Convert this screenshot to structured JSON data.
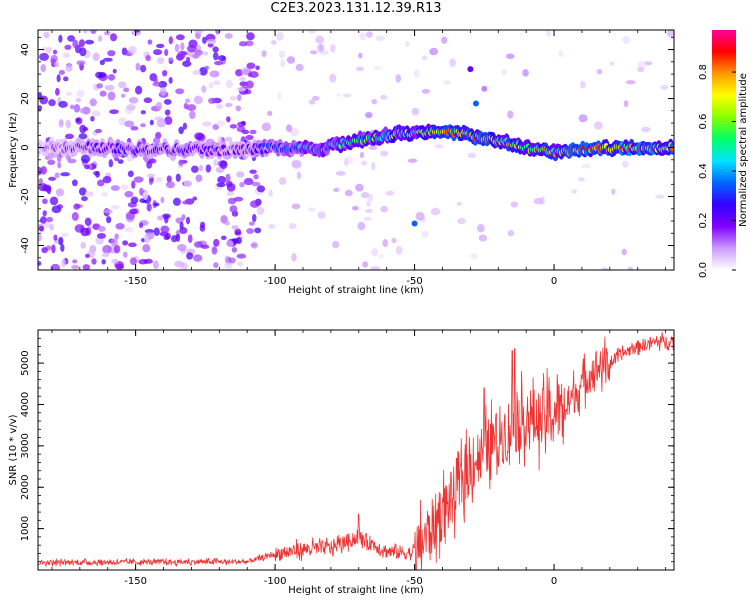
{
  "title": "C2E3.2023.131.12.39.R13",
  "chart_data": [
    {
      "type": "heatmap",
      "name": "spectrogram",
      "xlabel": "Height of straight line (km)",
      "ylabel": "Frequency (Hz)",
      "xlim": [
        -185,
        43
      ],
      "ylim": [
        -50,
        48
      ],
      "xticks": [
        -150,
        -100,
        -50,
        0
      ],
      "yticks": [
        -40,
        -20,
        0,
        20,
        40
      ],
      "colorbar": {
        "label": "Normalized spectral amplitude",
        "range": [
          0,
          0.97
        ],
        "ticks": [
          0.0,
          0.2,
          0.4,
          0.6,
          0.8
        ],
        "colormap": [
          "#ffffff",
          "#cc99ff",
          "#8000ff",
          "#3300ff",
          "#0066ff",
          "#00e5ff",
          "#00ff66",
          "#88ff00",
          "#ffff00",
          "#ff9900",
          "#ff0000",
          "#ff0099"
        ]
      },
      "ridge": {
        "description_points": [
          {
            "x": -185,
            "f": 0,
            "amp": 0.12
          },
          {
            "x": -160,
            "f": 0,
            "amp": 0.25
          },
          {
            "x": -130,
            "f": -1,
            "amp": 0.25
          },
          {
            "x": -110,
            "f": -1,
            "amp": 0.2
          },
          {
            "x": -100,
            "f": 0,
            "amp": 0.35
          },
          {
            "x": -85,
            "f": -1,
            "amp": 0.45
          },
          {
            "x": -75,
            "f": 2,
            "amp": 0.55
          },
          {
            "x": -60,
            "f": 5,
            "amp": 0.6
          },
          {
            "x": -50,
            "f": 6,
            "amp": 0.65
          },
          {
            "x": -40,
            "f": 7,
            "amp": 0.75
          },
          {
            "x": -30,
            "f": 5,
            "amp": 0.8
          },
          {
            "x": -20,
            "f": 3,
            "amp": 0.75
          },
          {
            "x": -10,
            "f": 0,
            "amp": 0.7
          },
          {
            "x": 0,
            "f": -2,
            "amp": 0.75
          },
          {
            "x": 10,
            "f": -1,
            "amp": 0.85
          },
          {
            "x": 25,
            "f": 0,
            "amp": 0.9
          },
          {
            "x": 43,
            "f": 0,
            "amp": 0.85
          }
        ]
      }
    },
    {
      "type": "line",
      "name": "snr",
      "xlabel": "Height of straight line (km)",
      "ylabel": "SNR (10 * v/v)",
      "xlim": [
        -185,
        43
      ],
      "ylim": [
        0,
        5800
      ],
      "xticks": [
        -150,
        -100,
        -50,
        0
      ],
      "yticks": [
        1000,
        2000,
        3000,
        4000,
        5000
      ],
      "color": "#ee3333",
      "envelope": [
        {
          "x": -185,
          "y": 180
        },
        {
          "x": -110,
          "y": 200
        },
        {
          "x": -100,
          "y": 380
        },
        {
          "x": -90,
          "y": 500
        },
        {
          "x": -80,
          "y": 550
        },
        {
          "x": -70,
          "y": 800
        },
        {
          "x": -60,
          "y": 450
        },
        {
          "x": -50,
          "y": 400
        },
        {
          "x": -45,
          "y": 900
        },
        {
          "x": -40,
          "y": 1400
        },
        {
          "x": -35,
          "y": 1900
        },
        {
          "x": -30,
          "y": 2500
        },
        {
          "x": -25,
          "y": 2900
        },
        {
          "x": -20,
          "y": 3200
        },
        {
          "x": -15,
          "y": 3500
        },
        {
          "x": -10,
          "y": 3700
        },
        {
          "x": -5,
          "y": 3600
        },
        {
          "x": 0,
          "y": 3800
        },
        {
          "x": 5,
          "y": 4000
        },
        {
          "x": 10,
          "y": 4500
        },
        {
          "x": 15,
          "y": 4900
        },
        {
          "x": 20,
          "y": 5000
        },
        {
          "x": 25,
          "y": 5250
        },
        {
          "x": 30,
          "y": 5400
        },
        {
          "x": 35,
          "y": 5500
        },
        {
          "x": 43,
          "y": 5550
        }
      ],
      "spikes": [
        {
          "x": -15,
          "y": 5300
        },
        {
          "x": -14,
          "y": 5350
        },
        {
          "x": -25,
          "y": 4400
        },
        {
          "x": -35,
          "y": 2700
        },
        {
          "x": -70,
          "y": 1350
        }
      ]
    }
  ]
}
